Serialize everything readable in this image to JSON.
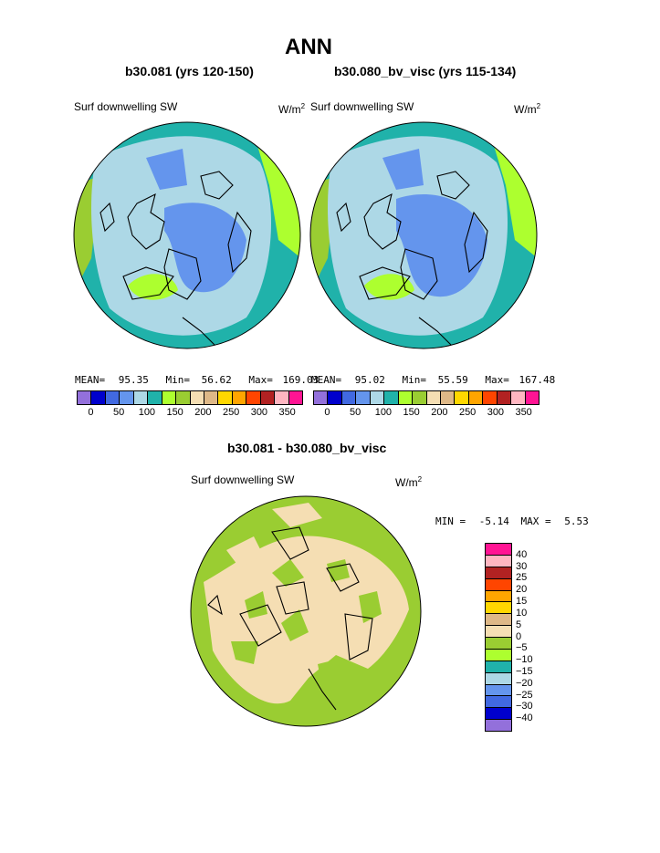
{
  "title": "ANN",
  "panels": [
    {
      "case": "b30.081 (yrs 120-150)",
      "var_label": "Surf downwelling SW",
      "units": "W/m",
      "units_sup": "2",
      "mean_label": "MEAN=",
      "mean": "95.35",
      "min_label": "Min=",
      "min": "56.62",
      "max_label": "Max=",
      "max": "169.03"
    },
    {
      "case": "b30.080_bv_visc (yrs 115-134)",
      "var_label": "Surf downwelling SW",
      "units": "W/m",
      "units_sup": "2",
      "mean_label": "MEAN=",
      "mean": "95.02",
      "min_label": "Min=",
      "min": "55.59",
      "max_label": "Max=",
      "max": "167.48"
    }
  ],
  "colorbar_top": {
    "colors": [
      "#9370db",
      "#0000cd",
      "#4169e1",
      "#6495ed",
      "#add8e6",
      "#20b2aa",
      "#adff2f",
      "#9acd32",
      "#f5deb3",
      "#deb887",
      "#ffd700",
      "#ffa500",
      "#ff4500",
      "#b22222",
      "#ffb6c1",
      "#ff1493"
    ],
    "ticks": [
      "0",
      "50",
      "100",
      "150",
      "200",
      "250",
      "300",
      "350"
    ]
  },
  "diff": {
    "title": "b30.081 - b30.080_bv_visc",
    "var_label": "Surf downwelling SW",
    "units": "W/m",
    "units_sup": "2",
    "min_label": "MIN =",
    "min": "-5.14",
    "max_label": "MAX =",
    "max": "5.53"
  },
  "colorbar_diff": {
    "colors": [
      "#ff1493",
      "#ffb6c1",
      "#b22222",
      "#ff4500",
      "#ffa500",
      "#ffd700",
      "#deb887",
      "#f5deb3",
      "#9acd32",
      "#adff2f",
      "#20b2aa",
      "#add8e6",
      "#6495ed",
      "#4169e1",
      "#0000cd",
      "#9370db"
    ],
    "ticks": [
      "40",
      "30",
      "25",
      "20",
      "15",
      "10",
      "5",
      "0",
      "−5",
      "−10",
      "−15",
      "−20",
      "−25",
      "−30",
      "−40"
    ]
  },
  "map_colors": {
    "ocean_band": "#20b2aa",
    "light_blue": "#add8e6",
    "med_blue": "#6495ed",
    "green_light": "#adff2f",
    "green_dark": "#9acd32",
    "wheat": "#f5deb3"
  }
}
